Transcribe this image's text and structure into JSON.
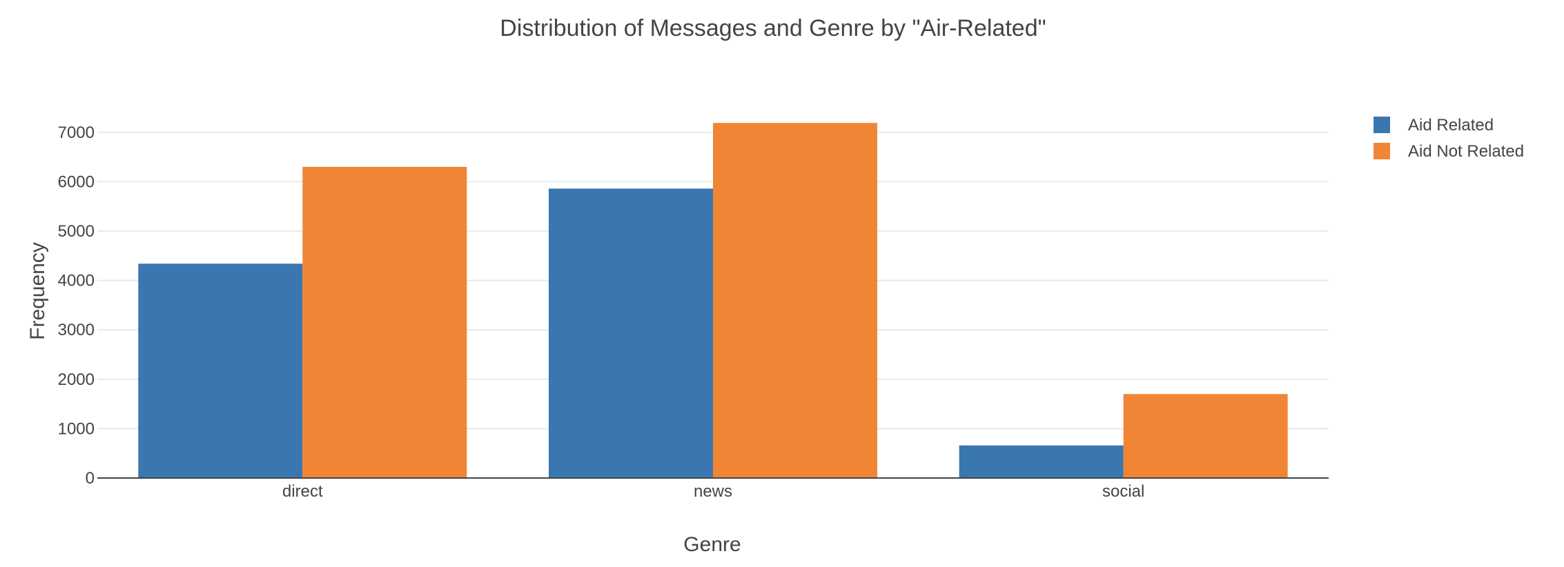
{
  "chart_data": {
    "type": "bar",
    "title": "Distribution of Messages and Genre by \"Air-Related\"",
    "xlabel": "Genre",
    "ylabel": "Frequency",
    "categories": [
      "direct",
      "news",
      "social"
    ],
    "series": [
      {
        "name": "Aid Related",
        "color": "#3a77b0",
        "values": [
          4340,
          5860,
          660
        ]
      },
      {
        "name": "Aid Not Related",
        "color": "#f08536",
        "values": [
          6300,
          7190,
          1700
        ]
      }
    ],
    "ylim": [
      0,
      7000
    ],
    "yticks": [
      0,
      1000,
      2000,
      3000,
      4000,
      5000,
      6000,
      7000
    ],
    "grid": true,
    "legend_position": "top-right"
  }
}
